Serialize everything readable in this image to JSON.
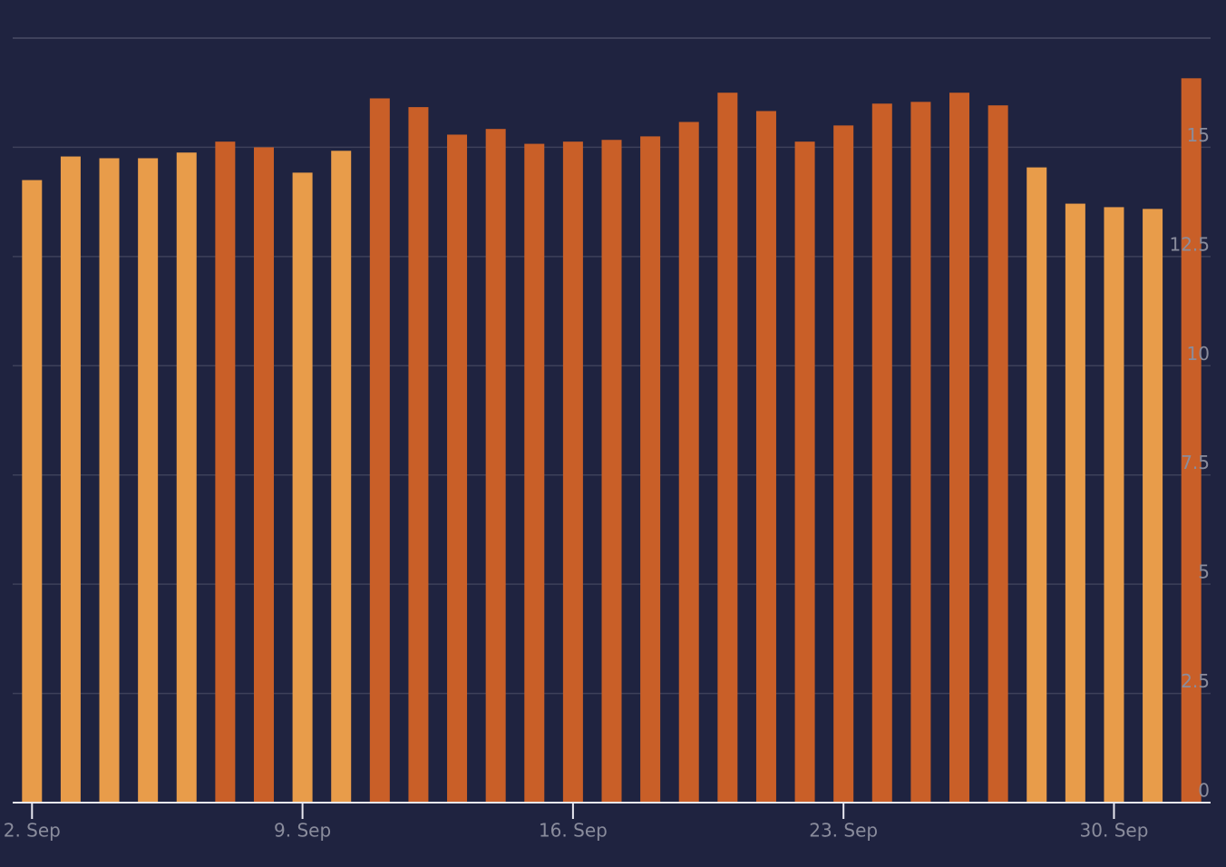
{
  "chart_data": {
    "type": "bar",
    "categories": [
      "2. Sep",
      null,
      null,
      null,
      null,
      null,
      null,
      "9. Sep",
      null,
      null,
      null,
      null,
      null,
      null,
      "16. Sep",
      null,
      null,
      null,
      null,
      null,
      null,
      "23. Sep",
      null,
      null,
      null,
      null,
      null,
      null,
      "30. Sep",
      null,
      null
    ],
    "values": [
      14.25,
      14.79,
      14.75,
      14.75,
      14.88,
      15.13,
      15.0,
      14.42,
      14.92,
      16.12,
      15.92,
      15.29,
      15.42,
      15.08,
      15.13,
      15.17,
      15.25,
      15.58,
      16.25,
      15.83,
      15.13,
      15.5,
      16.0,
      16.04,
      16.25,
      15.96,
      14.54,
      13.71,
      13.63,
      13.59,
      16.58
    ],
    "colors": [
      "#e89c4a",
      "#e89c4a",
      "#e89c4a",
      "#e89c4a",
      "#e89c4a",
      "#c95f28",
      "#c95f28",
      "#e89c4a",
      "#e89c4a",
      "#c95f28",
      "#c95f28",
      "#c95f28",
      "#c95f28",
      "#c95f28",
      "#c95f28",
      "#c95f28",
      "#c95f28",
      "#c95f28",
      "#c95f28",
      "#c95f28",
      "#c95f28",
      "#c95f28",
      "#c95f28",
      "#c95f28",
      "#c95f28",
      "#c95f28",
      "#e89c4a",
      "#e89c4a",
      "#e89c4a",
      "#e89c4a",
      "#c95f28"
    ],
    "ylim": [
      0,
      17.5
    ],
    "yticks": [
      0,
      2.5,
      5,
      7.5,
      10,
      12.5,
      15
    ],
    "grid": true
  }
}
